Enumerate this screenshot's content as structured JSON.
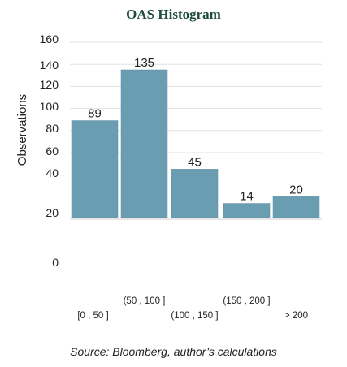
{
  "chart_data": {
    "type": "bar",
    "title": "OAS Histogram",
    "ylabel": "Observations",
    "xlabel": "",
    "categories": [
      "[0 , 50 ]",
      "(50 , 100 ]",
      "(100 , 150 ]",
      "(150 , 200 ]",
      "> 200"
    ],
    "values": [
      89,
      135,
      45,
      14,
      20
    ],
    "y_tick_labels": [
      "160",
      "140",
      "120",
      "100",
      "80",
      "60",
      "40",
      "20",
      "0"
    ],
    "ylim": [
      0,
      160
    ],
    "grid": true,
    "bar_color": "#6a9db2"
  },
  "source_note": "Source: Bloomberg, author’s calculations"
}
